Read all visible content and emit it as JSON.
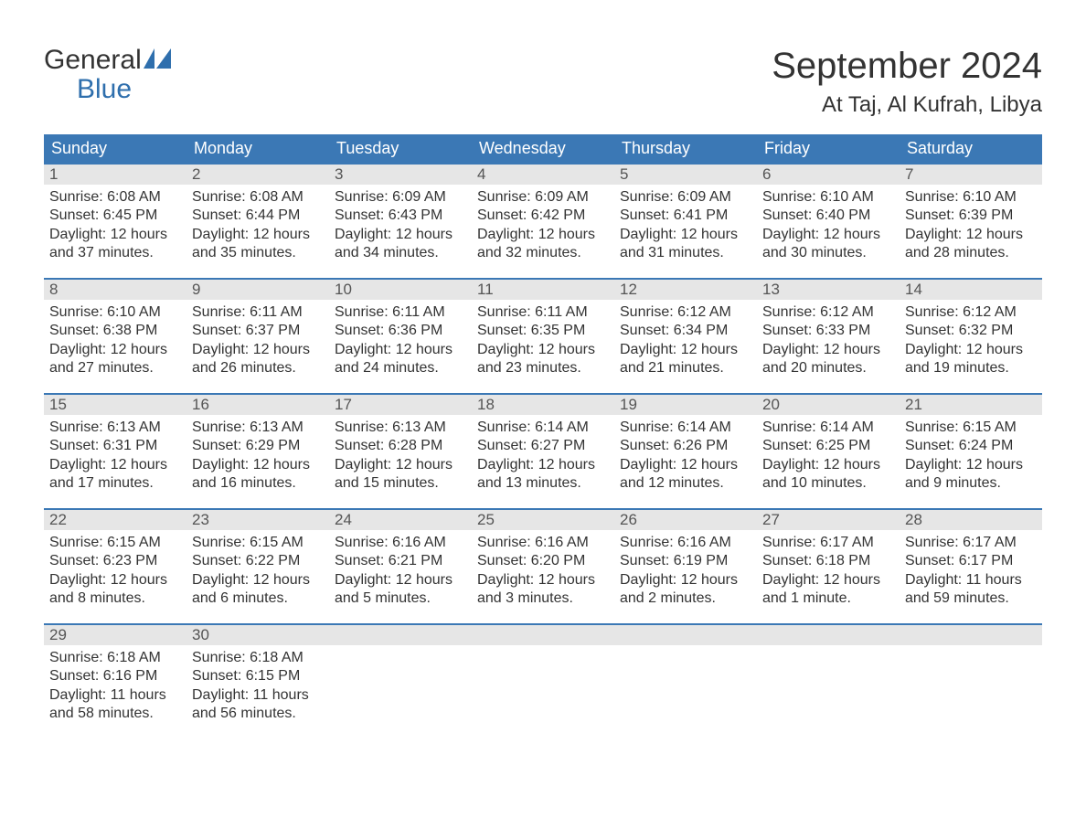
{
  "logo": {
    "line1": "General",
    "line2": "Blue",
    "icon_color": "#2f6fad"
  },
  "header": {
    "month_title": "September 2024",
    "location": "At Taj, Al Kufrah, Libya"
  },
  "colors": {
    "header_bg": "#3b78b5",
    "header_text": "#ffffff",
    "daynum_bg": "#e6e6e6",
    "daynum_border": "#3b78b5",
    "body_text": "#333333"
  },
  "days_of_week": [
    "Sunday",
    "Monday",
    "Tuesday",
    "Wednesday",
    "Thursday",
    "Friday",
    "Saturday"
  ],
  "weeks": [
    [
      {
        "n": "1",
        "sunrise": "6:08 AM",
        "sunset": "6:45 PM",
        "daylight": "12 hours and 37 minutes."
      },
      {
        "n": "2",
        "sunrise": "6:08 AM",
        "sunset": "6:44 PM",
        "daylight": "12 hours and 35 minutes."
      },
      {
        "n": "3",
        "sunrise": "6:09 AM",
        "sunset": "6:43 PM",
        "daylight": "12 hours and 34 minutes."
      },
      {
        "n": "4",
        "sunrise": "6:09 AM",
        "sunset": "6:42 PM",
        "daylight": "12 hours and 32 minutes."
      },
      {
        "n": "5",
        "sunrise": "6:09 AM",
        "sunset": "6:41 PM",
        "daylight": "12 hours and 31 minutes."
      },
      {
        "n": "6",
        "sunrise": "6:10 AM",
        "sunset": "6:40 PM",
        "daylight": "12 hours and 30 minutes."
      },
      {
        "n": "7",
        "sunrise": "6:10 AM",
        "sunset": "6:39 PM",
        "daylight": "12 hours and 28 minutes."
      }
    ],
    [
      {
        "n": "8",
        "sunrise": "6:10 AM",
        "sunset": "6:38 PM",
        "daylight": "12 hours and 27 minutes."
      },
      {
        "n": "9",
        "sunrise": "6:11 AM",
        "sunset": "6:37 PM",
        "daylight": "12 hours and 26 minutes."
      },
      {
        "n": "10",
        "sunrise": "6:11 AM",
        "sunset": "6:36 PM",
        "daylight": "12 hours and 24 minutes."
      },
      {
        "n": "11",
        "sunrise": "6:11 AM",
        "sunset": "6:35 PM",
        "daylight": "12 hours and 23 minutes."
      },
      {
        "n": "12",
        "sunrise": "6:12 AM",
        "sunset": "6:34 PM",
        "daylight": "12 hours and 21 minutes."
      },
      {
        "n": "13",
        "sunrise": "6:12 AM",
        "sunset": "6:33 PM",
        "daylight": "12 hours and 20 minutes."
      },
      {
        "n": "14",
        "sunrise": "6:12 AM",
        "sunset": "6:32 PM",
        "daylight": "12 hours and 19 minutes."
      }
    ],
    [
      {
        "n": "15",
        "sunrise": "6:13 AM",
        "sunset": "6:31 PM",
        "daylight": "12 hours and 17 minutes."
      },
      {
        "n": "16",
        "sunrise": "6:13 AM",
        "sunset": "6:29 PM",
        "daylight": "12 hours and 16 minutes."
      },
      {
        "n": "17",
        "sunrise": "6:13 AM",
        "sunset": "6:28 PM",
        "daylight": "12 hours and 15 minutes."
      },
      {
        "n": "18",
        "sunrise": "6:14 AM",
        "sunset": "6:27 PM",
        "daylight": "12 hours and 13 minutes."
      },
      {
        "n": "19",
        "sunrise": "6:14 AM",
        "sunset": "6:26 PM",
        "daylight": "12 hours and 12 minutes."
      },
      {
        "n": "20",
        "sunrise": "6:14 AM",
        "sunset": "6:25 PM",
        "daylight": "12 hours and 10 minutes."
      },
      {
        "n": "21",
        "sunrise": "6:15 AM",
        "sunset": "6:24 PM",
        "daylight": "12 hours and 9 minutes."
      }
    ],
    [
      {
        "n": "22",
        "sunrise": "6:15 AM",
        "sunset": "6:23 PM",
        "daylight": "12 hours and 8 minutes."
      },
      {
        "n": "23",
        "sunrise": "6:15 AM",
        "sunset": "6:22 PM",
        "daylight": "12 hours and 6 minutes."
      },
      {
        "n": "24",
        "sunrise": "6:16 AM",
        "sunset": "6:21 PM",
        "daylight": "12 hours and 5 minutes."
      },
      {
        "n": "25",
        "sunrise": "6:16 AM",
        "sunset": "6:20 PM",
        "daylight": "12 hours and 3 minutes."
      },
      {
        "n": "26",
        "sunrise": "6:16 AM",
        "sunset": "6:19 PM",
        "daylight": "12 hours and 2 minutes."
      },
      {
        "n": "27",
        "sunrise": "6:17 AM",
        "sunset": "6:18 PM",
        "daylight": "12 hours and 1 minute."
      },
      {
        "n": "28",
        "sunrise": "6:17 AM",
        "sunset": "6:17 PM",
        "daylight": "11 hours and 59 minutes."
      }
    ],
    [
      {
        "n": "29",
        "sunrise": "6:18 AM",
        "sunset": "6:16 PM",
        "daylight": "11 hours and 58 minutes."
      },
      {
        "n": "30",
        "sunrise": "6:18 AM",
        "sunset": "6:15 PM",
        "daylight": "11 hours and 56 minutes."
      },
      {
        "empty": true
      },
      {
        "empty": true
      },
      {
        "empty": true
      },
      {
        "empty": true
      },
      {
        "empty": true
      }
    ]
  ],
  "labels": {
    "sunrise_prefix": "Sunrise: ",
    "sunset_prefix": "Sunset: ",
    "daylight_prefix": "Daylight: "
  }
}
